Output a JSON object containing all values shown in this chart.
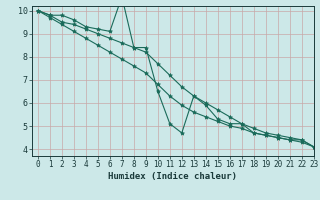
{
  "xlabel": "Humidex (Indice chaleur)",
  "background_color": "#cce8e8",
  "grid_color": "#aacccc",
  "line_color": "#1a6b5a",
  "xlim": [
    -0.5,
    23
  ],
  "ylim": [
    3.7,
    10.2
  ],
  "yticks": [
    4,
    5,
    6,
    7,
    8,
    9,
    10
  ],
  "xticks": [
    0,
    1,
    2,
    3,
    4,
    5,
    6,
    7,
    8,
    9,
    10,
    11,
    12,
    13,
    14,
    15,
    16,
    17,
    18,
    19,
    20,
    21,
    22,
    23
  ],
  "series": [
    [
      10.0,
      9.8,
      9.8,
      9.6,
      9.3,
      9.2,
      9.1,
      10.6,
      8.4,
      8.4,
      6.5,
      5.1,
      4.7,
      6.3,
      5.9,
      5.3,
      5.1,
      5.1,
      4.7,
      4.6,
      4.5,
      4.4,
      4.4,
      4.1
    ],
    [
      10.0,
      9.8,
      9.5,
      9.4,
      9.2,
      9.0,
      8.8,
      8.6,
      8.4,
      8.2,
      7.7,
      7.2,
      6.7,
      6.3,
      6.0,
      5.7,
      5.4,
      5.1,
      4.9,
      4.7,
      4.6,
      4.5,
      4.4,
      4.1
    ],
    [
      10.0,
      9.7,
      9.4,
      9.1,
      8.8,
      8.5,
      8.2,
      7.9,
      7.6,
      7.3,
      6.8,
      6.3,
      5.9,
      5.6,
      5.4,
      5.2,
      5.0,
      4.9,
      4.7,
      4.6,
      4.5,
      4.4,
      4.3,
      4.1
    ]
  ]
}
